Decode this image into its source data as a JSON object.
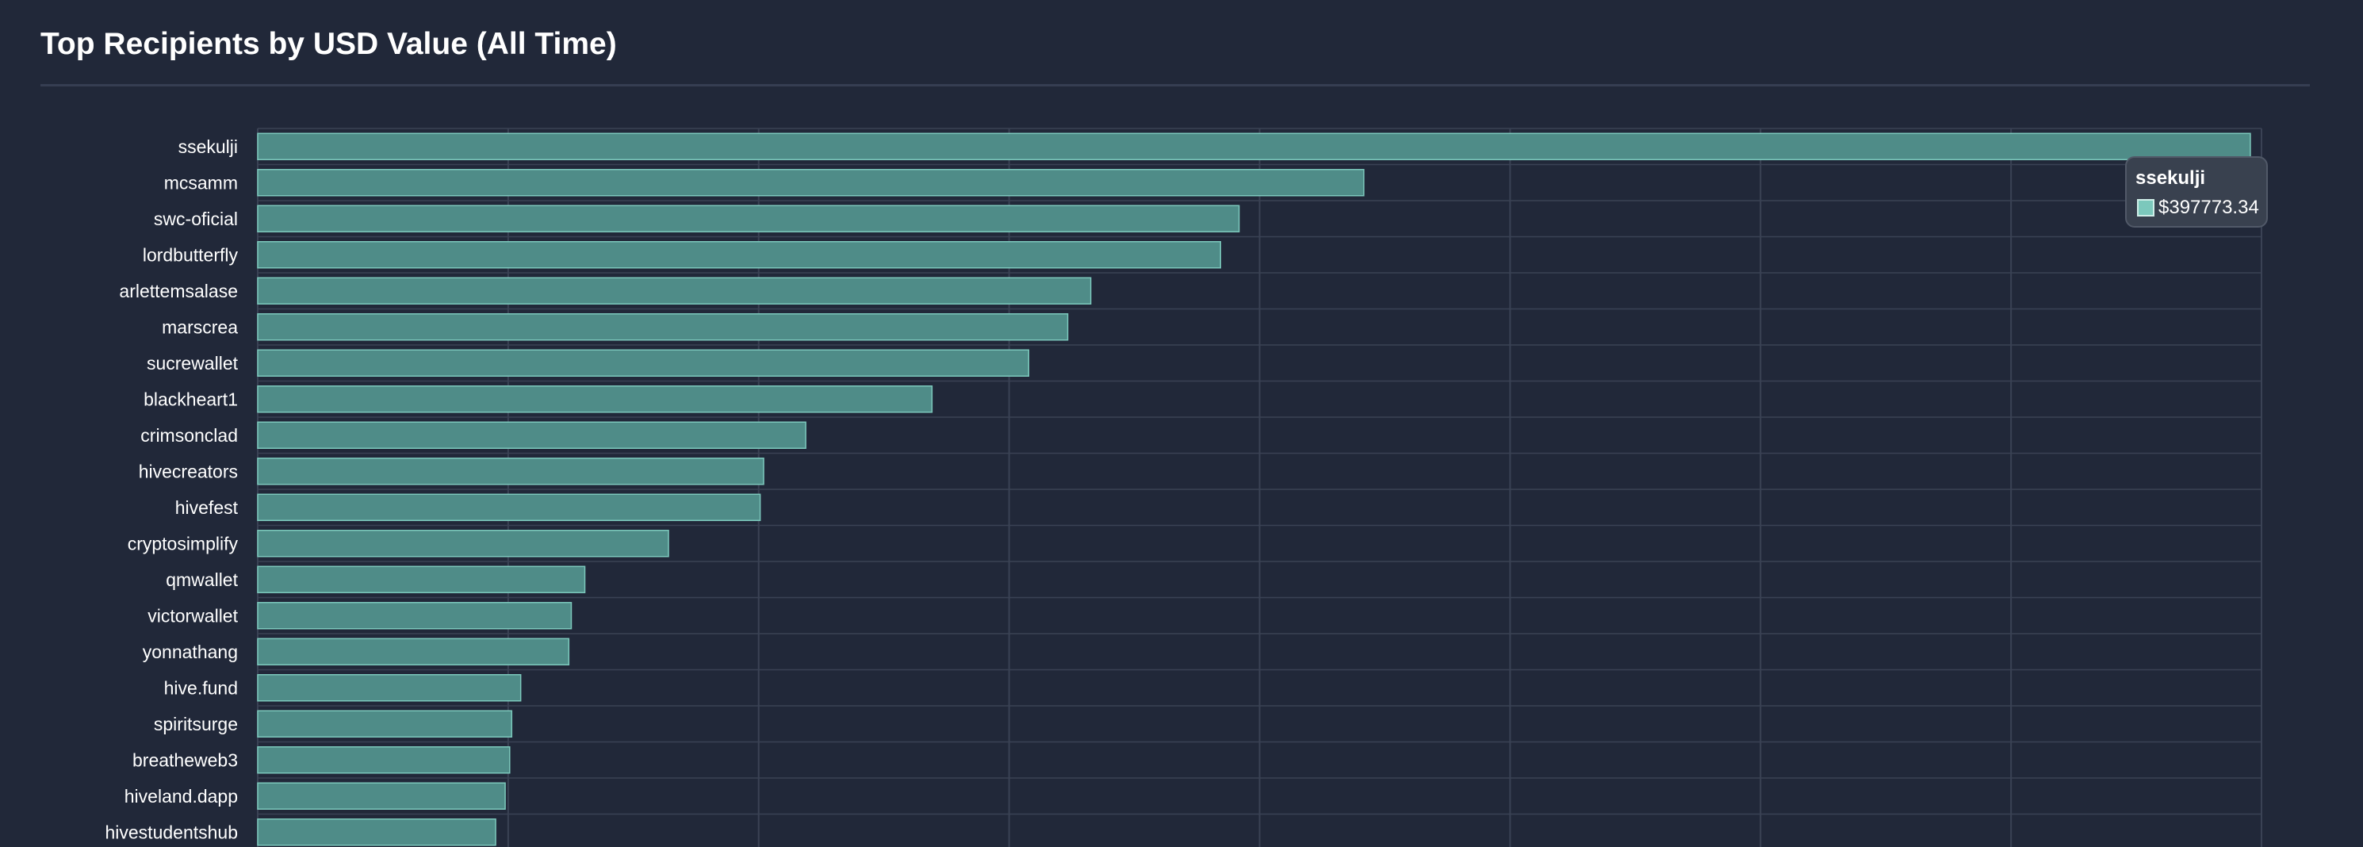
{
  "panel": {
    "title": "Top Recipients by USD Value (All Time)"
  },
  "tooltip": {
    "title": "ssekulji",
    "value": "$397773.34"
  },
  "colors": {
    "background": "#212839",
    "bar_fill": "#4f8c88",
    "bar_border": "#7cc8bc",
    "grid": "#3a4254",
    "label": "#ffffff",
    "tooltip_bg": "#39414f",
    "swatch": "#7cc8bc"
  },
  "chart_data": {
    "type": "bar",
    "orientation": "horizontal",
    "title": "Top Recipients by USD Value (All Time)",
    "xlabel": "",
    "ylabel": "",
    "xlim": [
      0,
      400000
    ],
    "grid": true,
    "legend": "none",
    "categories": [
      "ssekulji",
      "mcsamm",
      "swc-oficial",
      "lordbutterfly",
      "arlettemsalase",
      "marscrea",
      "sucrewallet",
      "blackheart1",
      "crimsonclad",
      "hivecreators",
      "hivefest",
      "cryptosimplify",
      "qmwallet",
      "victorwallet",
      "yonnathang",
      "hive.fund",
      "spiritsurge",
      "breatheweb3",
      "hiveland.dapp",
      "hivestudentshub"
    ],
    "values": [
      397773.34,
      220800,
      195900,
      192200,
      166300,
      161700,
      153900,
      134600,
      109400,
      101000,
      100300,
      82000,
      65300,
      62600,
      62100,
      52500,
      50700,
      50300,
      49400,
      47500
    ]
  }
}
